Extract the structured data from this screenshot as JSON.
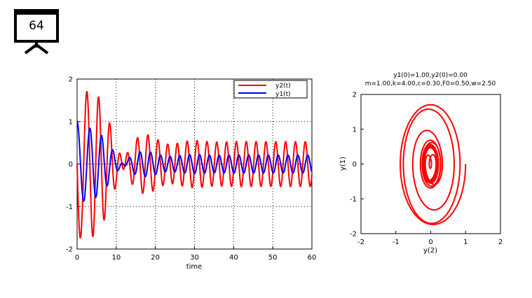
{
  "slide": {
    "number": "64",
    "icon": "projector-screen-icon"
  },
  "chart_data": [
    {
      "type": "line",
      "xlabel": "time",
      "ylabel": "",
      "xlim": [
        0,
        60
      ],
      "ylim": [
        -2,
        2
      ],
      "xticks": [
        "0",
        "10",
        "20",
        "30",
        "40",
        "50",
        "60"
      ],
      "yticks": [
        "-2",
        "-1",
        "0",
        "1",
        "2"
      ],
      "grid": true,
      "legend": "top-right",
      "model": {
        "m": 1.0,
        "k": 4.0,
        "c": 0.3,
        "F0": 0.5,
        "w": 2.5,
        "y1_0": 1.0,
        "y2_0": 0.0,
        "t_end": 60
      },
      "series": [
        {
          "name": "y2(t)",
          "color": "#ff0000"
        },
        {
          "name": "y1(t)",
          "color": "#0000ff"
        }
      ]
    },
    {
      "type": "line",
      "title_line1": "y1(0)=1.00,y2(0)=0.00",
      "title_line2": "m=1.00,k=4.00,c=0.30,F0=0.50,w=2.50",
      "xlabel": "y(2)",
      "ylabel": "y(1)",
      "xlim": [
        -2,
        2
      ],
      "ylim": [
        -2,
        2
      ],
      "xticks": [
        "-2",
        "-1",
        "0",
        "1",
        "2"
      ],
      "yticks": [
        "-2",
        "-1",
        "0",
        "1",
        "2"
      ],
      "grid": false,
      "series": [
        {
          "name": "phase portrait",
          "color": "#ff0000"
        }
      ]
    }
  ]
}
